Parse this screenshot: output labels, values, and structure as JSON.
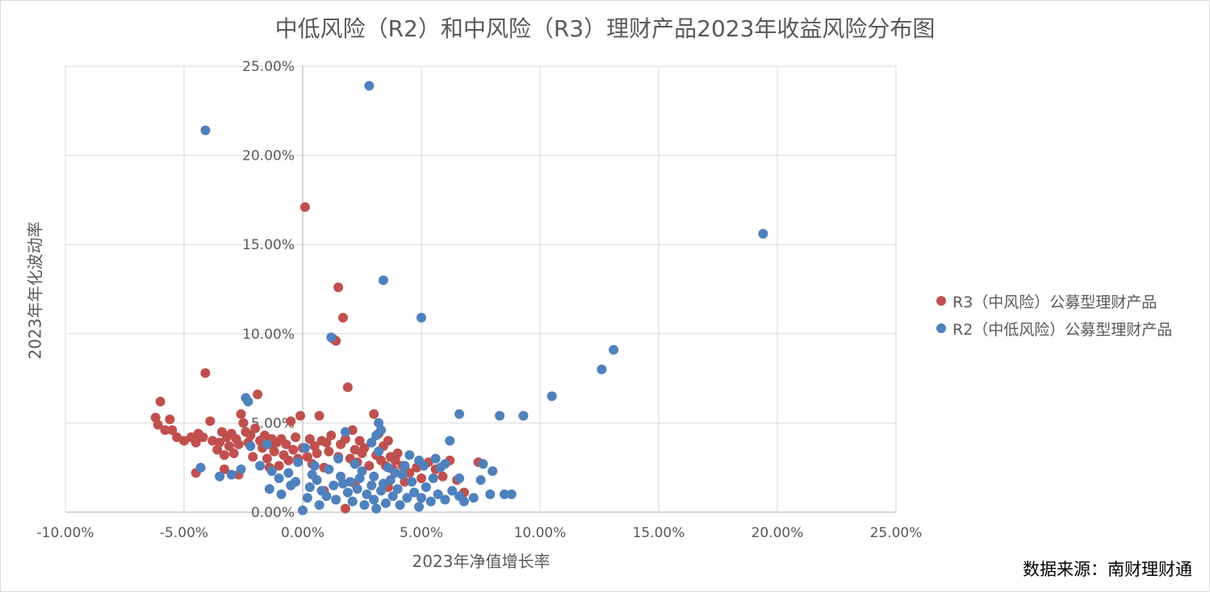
{
  "chart_data": {
    "type": "scatter",
    "title": "中低风险（R2）和中风险（R3）理财产品2023年收益风险分布图",
    "xlabel": "2023年净值增长率",
    "ylabel": "2023年年化波动率",
    "xlim": [
      -10,
      25
    ],
    "ylim": [
      0,
      25
    ],
    "x_ticks": [
      -10,
      -5,
      0,
      5,
      10,
      15,
      20,
      25
    ],
    "y_ticks": [
      0,
      5,
      10,
      15,
      20,
      25
    ],
    "x_tick_labels": [
      "-10.00%",
      "-5.00%",
      "0.00%",
      "5.00%",
      "10.00%",
      "15.00%",
      "20.00%",
      "25.00%"
    ],
    "y_tick_labels": [
      "0.00%",
      "5.00%",
      "10.00%",
      "15.00%",
      "20.00%",
      "25.00%"
    ],
    "grid": true,
    "legend_position": "right",
    "series": [
      {
        "name": "R3（中风险）公募型理财产品",
        "color": "#c0504d",
        "points": [
          [
            -6.0,
            6.2
          ],
          [
            -6.2,
            5.3
          ],
          [
            -6.1,
            4.9
          ],
          [
            -5.6,
            5.2
          ],
          [
            -5.5,
            4.6
          ],
          [
            -5.3,
            4.2
          ],
          [
            -5.0,
            4.0
          ],
          [
            -4.7,
            4.2
          ],
          [
            -4.5,
            3.9
          ],
          [
            -4.4,
            4.4
          ],
          [
            -4.2,
            4.2
          ],
          [
            -4.1,
            7.8
          ],
          [
            -3.9,
            5.1
          ],
          [
            -3.8,
            4.0
          ],
          [
            -3.6,
            3.5
          ],
          [
            -3.5,
            3.9
          ],
          [
            -3.4,
            4.5
          ],
          [
            -3.3,
            3.2
          ],
          [
            -3.2,
            4.2
          ],
          [
            -3.1,
            3.7
          ],
          [
            -3.0,
            4.4
          ],
          [
            -2.9,
            3.3
          ],
          [
            -2.8,
            4.1
          ],
          [
            -2.7,
            3.8
          ],
          [
            -2.6,
            5.5
          ],
          [
            -2.5,
            5.0
          ],
          [
            -2.4,
            4.5
          ],
          [
            -2.3,
            3.9
          ],
          [
            -2.2,
            4.3
          ],
          [
            -2.1,
            3.1
          ],
          [
            -2.0,
            4.7
          ],
          [
            -1.9,
            6.6
          ],
          [
            -1.8,
            4.0
          ],
          [
            -1.7,
            3.6
          ],
          [
            -1.6,
            4.3
          ],
          [
            -1.5,
            3.0
          ],
          [
            -1.4,
            3.8
          ],
          [
            -1.3,
            4.1
          ],
          [
            -1.2,
            3.4
          ],
          [
            -1.1,
            3.9
          ],
          [
            -1.0,
            2.6
          ],
          [
            -0.9,
            4.1
          ],
          [
            -0.8,
            3.2
          ],
          [
            -0.7,
            3.8
          ],
          [
            -0.6,
            2.9
          ],
          [
            -0.5,
            5.1
          ],
          [
            -0.4,
            3.5
          ],
          [
            -0.3,
            4.2
          ],
          [
            -0.2,
            3.0
          ],
          [
            -0.1,
            5.4
          ],
          [
            0.0,
            3.6
          ],
          [
            0.1,
            17.1
          ],
          [
            0.2,
            3.1
          ],
          [
            0.3,
            4.1
          ],
          [
            0.4,
            2.7
          ],
          [
            0.5,
            3.7
          ],
          [
            0.6,
            3.3
          ],
          [
            0.7,
            5.4
          ],
          [
            0.8,
            4.0
          ],
          [
            0.9,
            2.5
          ],
          [
            1.0,
            3.9
          ],
          [
            1.1,
            3.4
          ],
          [
            1.2,
            4.3
          ],
          [
            1.3,
            9.7
          ],
          [
            1.4,
            9.6
          ],
          [
            1.5,
            12.6
          ],
          [
            1.5,
            3.1
          ],
          [
            1.6,
            3.8
          ],
          [
            1.7,
            10.9
          ],
          [
            1.8,
            4.1
          ],
          [
            1.9,
            7.0
          ],
          [
            2.0,
            3.0
          ],
          [
            2.1,
            4.6
          ],
          [
            2.2,
            3.5
          ],
          [
            2.3,
            2.8
          ],
          [
            2.4,
            4.0
          ],
          [
            2.5,
            3.3
          ],
          [
            2.6,
            3.6
          ],
          [
            2.8,
            2.6
          ],
          [
            2.9,
            3.9
          ],
          [
            3.0,
            5.5
          ],
          [
            3.1,
            3.2
          ],
          [
            3.2,
            4.4
          ],
          [
            3.3,
            2.9
          ],
          [
            3.4,
            3.7
          ],
          [
            3.5,
            2.6
          ],
          [
            3.6,
            4.0
          ],
          [
            3.7,
            3.1
          ],
          [
            3.8,
            2.4
          ],
          [
            3.9,
            2.9
          ],
          [
            4.0,
            3.3
          ],
          [
            4.2,
            2.6
          ],
          [
            4.5,
            2.2
          ],
          [
            4.8,
            2.5
          ],
          [
            5.0,
            1.9
          ],
          [
            5.3,
            2.8
          ],
          [
            5.6,
            2.4
          ],
          [
            5.9,
            2.0
          ],
          [
            6.2,
            2.9
          ],
          [
            6.5,
            1.8
          ],
          [
            7.4,
            2.8
          ],
          [
            -5.8,
            4.6
          ],
          [
            -2.7,
            2.1
          ],
          [
            -1.4,
            2.5
          ],
          [
            0.9,
            1.2
          ],
          [
            1.8,
            0.2
          ],
          [
            2.2,
            1.6
          ],
          [
            3.6,
            1.4
          ],
          [
            4.3,
            1.7
          ],
          [
            6.8,
            1.1
          ],
          [
            -4.5,
            2.2
          ],
          [
            -3.3,
            2.4
          ]
        ]
      },
      {
        "name": "R2（中低风险）公募型理财产品",
        "color": "#4f81bd",
        "points": [
          [
            2.8,
            23.9
          ],
          [
            -4.1,
            21.4
          ],
          [
            19.4,
            15.6
          ],
          [
            3.4,
            13.0
          ],
          [
            5.0,
            10.9
          ],
          [
            1.2,
            9.8
          ],
          [
            13.1,
            9.1
          ],
          [
            12.6,
            8.0
          ],
          [
            10.5,
            6.5
          ],
          [
            -2.4,
            6.4
          ],
          [
            -2.3,
            6.2
          ],
          [
            6.6,
            5.5
          ],
          [
            8.3,
            5.4
          ],
          [
            9.3,
            5.4
          ],
          [
            3.2,
            5.0
          ],
          [
            3.3,
            4.6
          ],
          [
            1.8,
            4.5
          ],
          [
            3.1,
            4.3
          ],
          [
            6.2,
            4.0
          ],
          [
            2.9,
            3.9
          ],
          [
            -1.5,
            3.8
          ],
          [
            -2.2,
            3.7
          ],
          [
            0.1,
            3.6
          ],
          [
            3.2,
            3.4
          ],
          [
            4.5,
            3.2
          ],
          [
            5.6,
            3.0
          ],
          [
            4.9,
            2.9
          ],
          [
            6.0,
            2.7
          ],
          [
            5.1,
            2.6
          ],
          [
            7.6,
            2.7
          ],
          [
            5.8,
            2.5
          ],
          [
            -2.6,
            2.4
          ],
          [
            -4.3,
            2.5
          ],
          [
            -3.5,
            2.0
          ],
          [
            -3.0,
            2.1
          ],
          [
            -1.3,
            2.3
          ],
          [
            -0.6,
            2.2
          ],
          [
            0.4,
            2.1
          ],
          [
            1.6,
            2.0
          ],
          [
            2.4,
            1.9
          ],
          [
            3.0,
            2.0
          ],
          [
            3.7,
            1.8
          ],
          [
            4.2,
            2.1
          ],
          [
            6.6,
            1.9
          ],
          [
            7.5,
            1.8
          ],
          [
            8.0,
            2.3
          ],
          [
            7.9,
            1.0
          ],
          [
            8.5,
            1.0
          ],
          [
            8.8,
            1.0
          ],
          [
            6.6,
            0.9
          ],
          [
            5.0,
            0.8
          ],
          [
            0.0,
            0.1
          ],
          [
            -1.4,
            1.3
          ],
          [
            -0.5,
            1.5
          ],
          [
            0.3,
            1.4
          ],
          [
            0.8,
            1.2
          ],
          [
            1.0,
            0.9
          ],
          [
            1.3,
            1.5
          ],
          [
            1.9,
            1.1
          ],
          [
            2.1,
            0.6
          ],
          [
            2.3,
            1.3
          ],
          [
            2.6,
            0.4
          ],
          [
            2.7,
            1.0
          ],
          [
            3.0,
            0.7
          ],
          [
            3.3,
            1.2
          ],
          [
            3.5,
            0.5
          ],
          [
            3.8,
            0.9
          ],
          [
            4.0,
            1.3
          ],
          [
            4.1,
            0.4
          ],
          [
            4.4,
            0.8
          ],
          [
            4.7,
            1.1
          ],
          [
            4.9,
            0.3
          ],
          [
            5.2,
            1.4
          ],
          [
            5.4,
            0.6
          ],
          [
            5.7,
            1.0
          ],
          [
            6.0,
            0.7
          ],
          [
            6.3,
            1.2
          ],
          [
            6.8,
            0.6
          ],
          [
            7.2,
            0.8
          ],
          [
            -0.2,
            2.8
          ],
          [
            0.5,
            2.6
          ],
          [
            1.1,
            2.4
          ],
          [
            1.5,
            3.0
          ],
          [
            2.2,
            2.7
          ],
          [
            2.5,
            2.3
          ],
          [
            3.6,
            2.5
          ],
          [
            3.9,
            2.2
          ],
          [
            4.3,
            2.6
          ],
          [
            -1.0,
            1.9
          ],
          [
            -0.9,
            1.0
          ],
          [
            0.2,
            0.8
          ],
          [
            0.7,
            0.4
          ],
          [
            1.4,
            0.7
          ],
          [
            1.7,
            1.6
          ],
          [
            2.0,
            1.7
          ],
          [
            2.9,
            1.5
          ],
          [
            3.1,
            0.2
          ],
          [
            3.4,
            1.6
          ],
          [
            4.6,
            1.7
          ],
          [
            5.5,
            1.9
          ],
          [
            -1.8,
            2.6
          ],
          [
            -0.3,
            1.7
          ],
          [
            0.6,
            1.8
          ]
        ]
      }
    ]
  },
  "source_note": "数据来源：南财理财通"
}
